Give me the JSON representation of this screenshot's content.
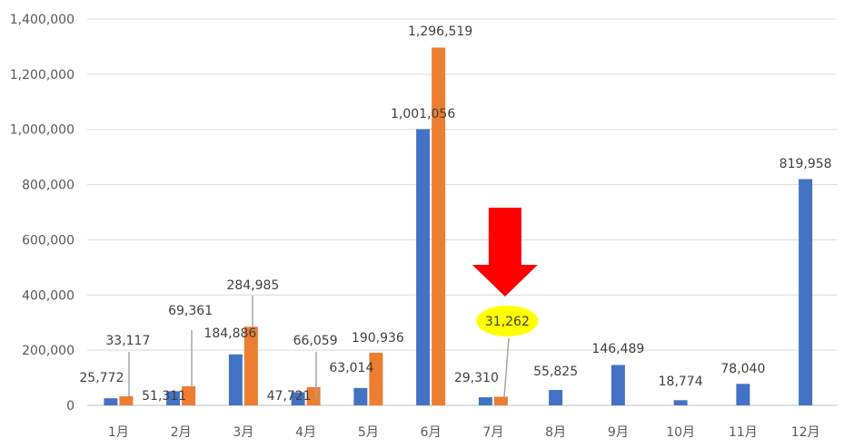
{
  "chart_data": {
    "type": "bar",
    "categories": [
      "1月",
      "2月",
      "3月",
      "4月",
      "5月",
      "6月",
      "7月",
      "8月",
      "9月",
      "10月",
      "11月",
      "12月"
    ],
    "series": [
      {
        "color": "#4472C4",
        "values": [
          25772,
          51311,
          184886,
          47721,
          63014,
          1001056,
          29310,
          55825,
          146489,
          18774,
          78040,
          819958
        ],
        "labels": [
          "25,772",
          "51,311",
          "184,886",
          "47,721",
          "63,014",
          "1,001,056",
          "29,310",
          "55,825",
          "146,489",
          "18,774",
          "78,040",
          "819,958"
        ]
      },
      {
        "color": "#ED7D31",
        "values": [
          33117,
          69361,
          284985,
          66059,
          190936,
          1296519,
          31262,
          null,
          null,
          null,
          null,
          null
        ],
        "labels": [
          "33,117",
          "69,361",
          "284,985",
          "66,059",
          "190,936",
          "1,296,519",
          "31,262",
          null,
          null,
          null,
          null,
          null
        ]
      }
    ],
    "ylim": [
      0,
      1400000
    ],
    "yticks": [
      0,
      200000,
      400000,
      600000,
      800000,
      1000000,
      1200000,
      1400000
    ],
    "ytick_labels": [
      "0",
      "200,000",
      "400,000",
      "600,000",
      "800,000",
      "1,000,000",
      "1,200,000",
      "1,400,000"
    ],
    "grid": true,
    "annotation": {
      "type": "arrow",
      "color": "#FF0000",
      "points_to": "7月",
      "highlight_label": "31,262",
      "highlight_color": "#FFFF00"
    }
  }
}
